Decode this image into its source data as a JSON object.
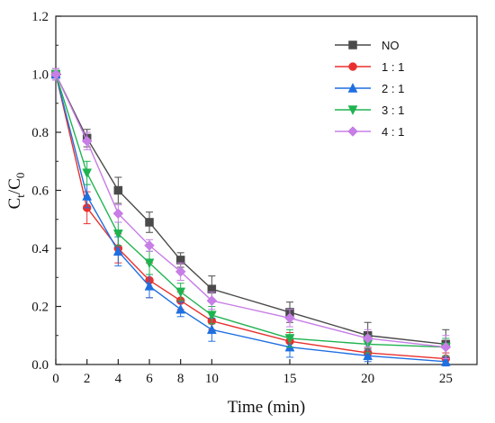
{
  "chart_data": {
    "type": "line",
    "xlabel": "Time (min)",
    "ylabel_main": "C",
    "ylabel_sub1": "t",
    "ylabel_sep": "/C",
    "ylabel_sub2": "0",
    "xlim": [
      0,
      27
    ],
    "ylim": [
      0,
      1.2
    ],
    "x_ticks": [
      0,
      2,
      4,
      6,
      8,
      10,
      15,
      20,
      25
    ],
    "y_ticks": [
      0.0,
      0.2,
      0.4,
      0.6,
      0.8,
      1.0,
      1.2
    ],
    "y_tick_labels": [
      "0.0",
      "0.2",
      "0.4",
      "0.6",
      "0.8",
      "1.0",
      "1.2"
    ],
    "grid": false,
    "legend_position": "top-right",
    "x": [
      0,
      2,
      4,
      6,
      8,
      10,
      15,
      20,
      25
    ],
    "series": [
      {
        "name": "NO",
        "color": "#4a4a4a",
        "marker": "square",
        "values": [
          1.0,
          0.78,
          0.6,
          0.49,
          0.36,
          0.26,
          0.18,
          0.1,
          0.07
        ],
        "errors": [
          0.02,
          0.03,
          0.045,
          0.035,
          0.025,
          0.045,
          0.035,
          0.045,
          0.05
        ]
      },
      {
        "name": "1 : 1",
        "color": "#e8312f",
        "marker": "circle",
        "values": [
          1.0,
          0.54,
          0.4,
          0.29,
          0.22,
          0.15,
          0.08,
          0.04,
          0.02
        ],
        "errors": [
          0.02,
          0.055,
          0.05,
          0.06,
          0.03,
          0.03,
          0.03,
          0.02,
          0.02
        ]
      },
      {
        "name": "2 : 1",
        "color": "#1f6fe0",
        "marker": "triangle-up",
        "values": [
          1.0,
          0.58,
          0.39,
          0.27,
          0.19,
          0.12,
          0.06,
          0.03,
          0.01
        ],
        "errors": [
          0.02,
          0.04,
          0.05,
          0.04,
          0.025,
          0.04,
          0.035,
          0.02,
          0.015
        ]
      },
      {
        "name": "3 : 1",
        "color": "#1eb34f",
        "marker": "triangle-down",
        "values": [
          1.0,
          0.66,
          0.45,
          0.35,
          0.25,
          0.17,
          0.09,
          0.07,
          0.06
        ],
        "errors": [
          0.02,
          0.04,
          0.04,
          0.04,
          0.03,
          0.03,
          0.03,
          0.03,
          0.03
        ]
      },
      {
        "name": "4 : 1",
        "color": "#c77ee6",
        "marker": "diamond",
        "values": [
          1.0,
          0.77,
          0.52,
          0.41,
          0.32,
          0.22,
          0.16,
          0.09,
          0.06
        ],
        "errors": [
          0.02,
          0.03,
          0.03,
          0.02,
          0.03,
          0.03,
          0.03,
          0.03,
          0.04
        ]
      }
    ]
  }
}
